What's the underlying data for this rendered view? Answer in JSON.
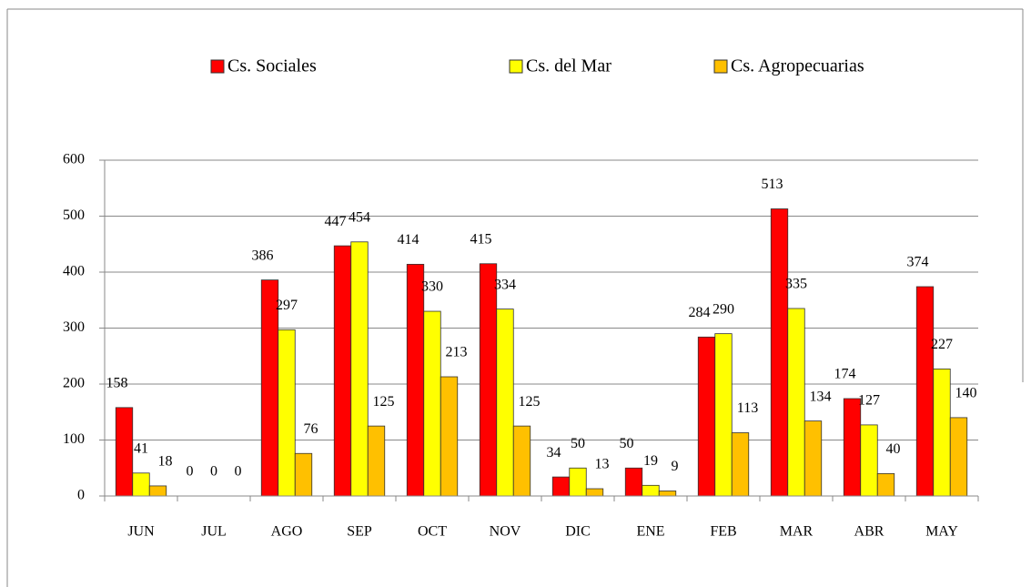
{
  "chart_data": {
    "type": "bar",
    "categories": [
      "JUN",
      "JUL",
      "AGO",
      "SEP",
      "OCT",
      "NOV",
      "DIC",
      "ENE",
      "FEB",
      "MAR",
      "ABR",
      "MAY"
    ],
    "series": [
      {
        "name": "Cs. Sociales",
        "color": "#ff0000",
        "values": [
          158,
          0,
          386,
          447,
          414,
          415,
          34,
          50,
          284,
          513,
          174,
          374
        ]
      },
      {
        "name": "Cs. del Mar",
        "color": "#ffff00",
        "values": [
          41,
          0,
          297,
          454,
          330,
          334,
          50,
          19,
          290,
          335,
          127,
          227
        ]
      },
      {
        "name": "Cs. Agropecuarias",
        "color": "#ffc000",
        "values": [
          18,
          0,
          76,
          125,
          213,
          125,
          13,
          9,
          113,
          134,
          40,
          140
        ]
      }
    ],
    "ylim": [
      0,
      600
    ],
    "yticks": [
      0,
      100,
      200,
      300,
      400,
      500,
      600
    ],
    "grid": true,
    "legend": "top"
  }
}
